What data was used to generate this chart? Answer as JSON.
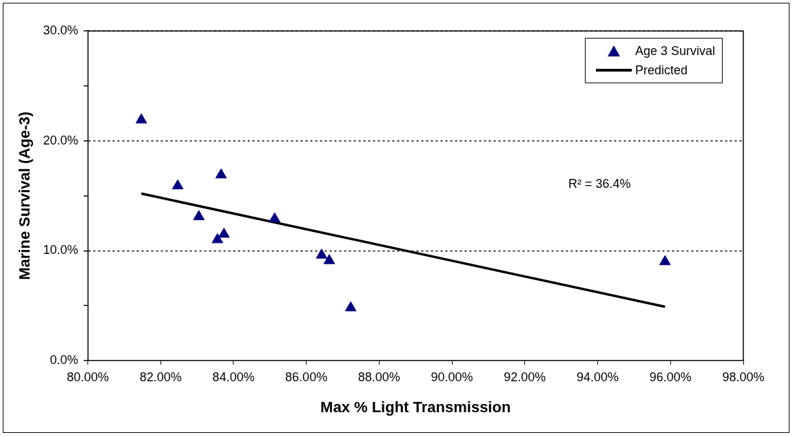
{
  "chart_data": {
    "type": "scatter",
    "xlabel": "Max % Light Transmission",
    "ylabel": "Marine Survival (Age-3)",
    "xlim": [
      80,
      98
    ],
    "xticks": [
      {
        "value": 80,
        "label": "80.00%"
      },
      {
        "value": 82,
        "label": "82.00%"
      },
      {
        "value": 84,
        "label": "84.00%"
      },
      {
        "value": 86,
        "label": "86.00%"
      },
      {
        "value": 88,
        "label": "88.00%"
      },
      {
        "value": 90,
        "label": "90.00%"
      },
      {
        "value": 92,
        "label": "92.00%"
      },
      {
        "value": 94,
        "label": "94.00%"
      },
      {
        "value": 96,
        "label": "96.00%"
      },
      {
        "value": 98,
        "label": "98.00%"
      }
    ],
    "ylim": [
      0,
      30
    ],
    "yticks": [
      {
        "value": 0,
        "label": "0.0%"
      },
      {
        "value": 5,
        "label": null
      },
      {
        "value": 10,
        "label": "10.0%"
      },
      {
        "value": 15,
        "label": null
      },
      {
        "value": 20,
        "label": "20.0%"
      },
      {
        "value": 25,
        "label": null
      },
      {
        "value": 30,
        "label": "30.0%"
      }
    ],
    "grid": "y",
    "legend": "top right",
    "marker": "triangle",
    "series": [
      {
        "name": "Age 3 Survival",
        "color": "#000080",
        "x": [
          81.47,
          82.47,
          83.05,
          83.56,
          83.66,
          83.74,
          85.13,
          86.42,
          86.63,
          87.22,
          95.85
        ],
        "values": [
          21.9,
          15.9,
          13.1,
          11.0,
          16.9,
          11.5,
          12.9,
          9.6,
          9.1,
          4.8,
          9.0
        ]
      },
      {
        "name": "Predicted",
        "type": "line",
        "color": "#000000",
        "line_style": "solid",
        "marker": "none",
        "x": [
          81.47,
          95.85
        ],
        "values": [
          15.2,
          4.9
        ]
      }
    ],
    "annotations": [
      "R² = 36.4%"
    ]
  }
}
